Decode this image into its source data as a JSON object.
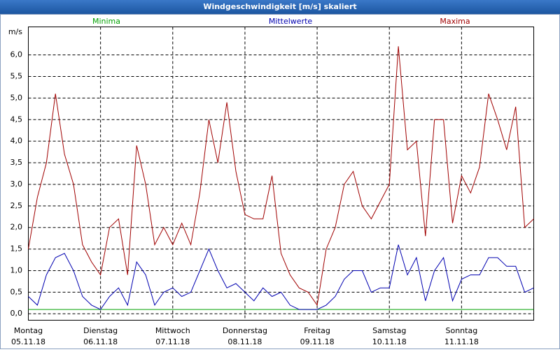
{
  "chart_data": {
    "type": "line",
    "title": "Windgeschwindigkeit [m/s] skaliert",
    "y_unit": "m/s",
    "categories": [
      "Montag",
      null,
      null,
      null,
      null,
      null,
      null,
      null,
      "Dienstag",
      null,
      null,
      null,
      null,
      null,
      null,
      null,
      "Mittwoch",
      null,
      null,
      null,
      null,
      null,
      null,
      null,
      "Donnerstag",
      null,
      null,
      null,
      null,
      null,
      null,
      null,
      "Freitag",
      null,
      null,
      null,
      null,
      null,
      null,
      null,
      "Samstag",
      null,
      null,
      null,
      null,
      null,
      null,
      null,
      "Sonntag",
      null,
      null,
      null,
      null,
      null,
      null,
      null,
      null
    ],
    "category_dates": [
      "05.11.18",
      null,
      null,
      null,
      null,
      null,
      null,
      null,
      "06.11.18",
      null,
      null,
      null,
      null,
      null,
      null,
      null,
      "07.11.18",
      null,
      null,
      null,
      null,
      null,
      null,
      null,
      "08.11.18",
      null,
      null,
      null,
      null,
      null,
      null,
      null,
      "09.11.18",
      null,
      null,
      null,
      null,
      null,
      null,
      null,
      "10.11.18",
      null,
      null,
      null,
      null,
      null,
      null,
      null,
      "11.11.18",
      null,
      null,
      null,
      null,
      null,
      null,
      null,
      null
    ],
    "series": [
      {
        "name": "Minima",
        "color": "#00a000",
        "values": [
          0.1,
          0.1,
          0.1,
          0.1,
          0.1,
          0.1,
          0.1,
          0.1,
          0.1,
          0.1,
          0.1,
          0.1,
          0.1,
          0.1,
          0.1,
          0.1,
          0.1,
          0.1,
          0.1,
          0.1,
          0.1,
          0.1,
          0.1,
          0.1,
          0.1,
          0.1,
          0.1,
          0.1,
          0.1,
          0.1,
          0.1,
          0.1,
          0.1,
          0.1,
          0.1,
          0.1,
          0.1,
          0.1,
          0.1,
          0.1,
          0.1,
          0.1,
          0.1,
          0.1,
          0.1,
          0.1,
          0.1,
          0.1,
          0.1,
          0.1,
          0.1,
          0.1,
          0.1,
          0.1,
          0.1,
          0.1,
          0.1
        ]
      },
      {
        "name": "Mittelwerte",
        "color": "#0000b0",
        "values": [
          0.4,
          0.2,
          0.9,
          1.3,
          1.4,
          1.0,
          0.4,
          0.2,
          0.1,
          0.4,
          0.6,
          0.2,
          1.2,
          0.9,
          0.2,
          0.5,
          0.6,
          0.4,
          0.5,
          1.0,
          1.5,
          1.0,
          0.6,
          0.7,
          0.5,
          0.3,
          0.6,
          0.4,
          0.5,
          0.2,
          0.1,
          0.1,
          0.1,
          0.2,
          0.4,
          0.8,
          1.0,
          1.0,
          0.5,
          0.6,
          0.6,
          1.6,
          0.9,
          1.3,
          0.3,
          1.0,
          1.3,
          0.3,
          0.8,
          0.9,
          0.9,
          1.3,
          1.3,
          1.1,
          1.1,
          0.5,
          0.6
        ]
      },
      {
        "name": "Maxima",
        "color": "#a00000",
        "values": [
          1.5,
          2.7,
          3.5,
          5.1,
          3.7,
          3.0,
          1.6,
          1.2,
          0.9,
          2.0,
          2.2,
          0.9,
          3.9,
          3.0,
          1.6,
          2.0,
          1.6,
          2.1,
          1.6,
          2.8,
          4.5,
          3.5,
          4.9,
          3.3,
          2.3,
          2.2,
          2.2,
          3.2,
          1.4,
          0.9,
          0.6,
          0.5,
          0.2,
          1.5,
          2.0,
          3.0,
          3.3,
          2.5,
          2.2,
          2.6,
          3.0,
          6.2,
          3.8,
          4.0,
          1.8,
          4.5,
          4.5,
          2.1,
          3.2,
          2.8,
          3.4,
          5.1,
          4.5,
          3.8,
          4.8,
          2.0,
          2.2
        ]
      }
    ],
    "ylim": [
      -0.15,
      6.65
    ],
    "yticks": [
      {
        "value": 0,
        "label": "0,0"
      },
      {
        "value": 0.5,
        "label": "0,5"
      },
      {
        "value": 1,
        "label": "1,0"
      },
      {
        "value": 1.5,
        "label": "1,5"
      },
      {
        "value": 2,
        "label": "2,0"
      },
      {
        "value": 2.5,
        "label": "2,5"
      },
      {
        "value": 3,
        "label": "3,0"
      },
      {
        "value": 3.5,
        "label": "3,5"
      },
      {
        "value": 4,
        "label": "4,0"
      },
      {
        "value": 4.5,
        "label": "4,5"
      },
      {
        "value": 5,
        "label": "5,0"
      },
      {
        "value": 5.5,
        "label": "5,5"
      },
      {
        "value": 6,
        "label": "6,0"
      }
    ],
    "grid": true
  }
}
